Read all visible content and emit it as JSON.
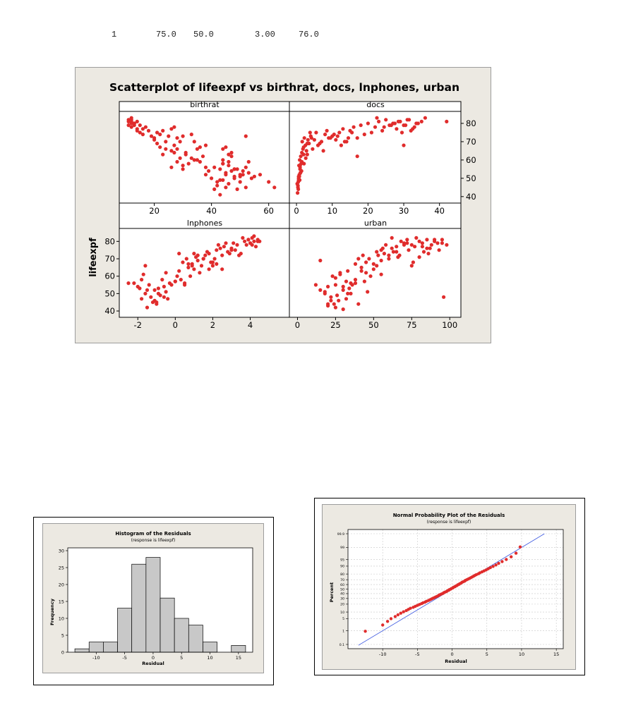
{
  "data_row": [
    "1",
    "75.0",
    "50.0",
    "3.00",
    "76.0"
  ],
  "colors": {
    "panel_bg": "#ece9e2",
    "plot_bg": "#ffffff",
    "point": "#e02c2c",
    "bar": "#c8c8c8",
    "fit_line": "#3a56e0"
  },
  "chart_data": [
    {
      "type": "scatter",
      "title": "Scatterplot of lifeexpf vs birthrat, docs, lnphones, urban",
      "ylabel": "lifeexpf",
      "ylim": [
        38,
        85
      ],
      "yticks": [
        40,
        50,
        60,
        70,
        80
      ],
      "ytick_labels": [
        "40",
        "50",
        "60",
        "70",
        "80"
      ],
      "panels": [
        {
          "label": "birthrat",
          "xlim": [
            9,
            66
          ],
          "xticks": [
            20,
            40,
            60
          ],
          "xtick_labels": [
            "20",
            "40",
            "60"
          ],
          "x": [
            11,
            12,
            13,
            11,
            14,
            12,
            13,
            15,
            12,
            16,
            14,
            13,
            11,
            12,
            15,
            17,
            13,
            18,
            16,
            14,
            12,
            21,
            19,
            20,
            23,
            22,
            24,
            20,
            26,
            21,
            27,
            22,
            25,
            28,
            24,
            29,
            30,
            26,
            23,
            27,
            31,
            28,
            33,
            29,
            32,
            34,
            30,
            31,
            36,
            35,
            37,
            38,
            34,
            39,
            40,
            36,
            38,
            41,
            33,
            30,
            28,
            27,
            26,
            43,
            44,
            45,
            42,
            44,
            45,
            46,
            43,
            47,
            48,
            46,
            44,
            45,
            47,
            49,
            50,
            48,
            52,
            51,
            53,
            54,
            50,
            52,
            43,
            44,
            46,
            48,
            42,
            45,
            47,
            49,
            51,
            53,
            41,
            44,
            46,
            48,
            50,
            52,
            55,
            62,
            60,
            57,
            35,
            38
          ],
          "y": [
            82,
            81,
            80,
            79,
            81,
            83,
            80,
            79,
            78,
            77,
            76,
            80,
            81,
            82,
            75,
            78,
            79,
            76,
            74,
            77,
            80,
            75,
            73,
            71,
            76,
            74,
            70,
            72,
            77,
            69,
            78,
            67,
            73,
            72,
            66,
            70,
            73,
            65,
            63,
            68,
            64,
            66,
            74,
            61,
            58,
            70,
            55,
            63,
            67,
            66,
            62,
            68,
            60,
            54,
            50,
            59,
            52,
            56,
            61,
            57,
            59,
            64,
            56,
            55,
            58,
            52,
            48,
            60,
            53,
            57,
            49,
            54,
            51,
            47,
            66,
            45,
            62,
            44,
            52,
            50,
            56,
            54,
            53,
            50,
            48,
            45,
            41,
            58,
            63,
            55,
            46,
            67,
            64,
            55,
            52,
            59,
            44,
            49,
            59,
            55,
            51,
            73,
            51,
            45,
            48,
            52,
            60,
            56
          ]
        },
        {
          "label": "docs",
          "xlim": [
            -1,
            45
          ],
          "xticks": [
            0,
            10,
            20,
            30,
            40
          ],
          "xtick_labels": [
            "0",
            "10",
            "20",
            "30",
            "40"
          ],
          "x": [
            0.3,
            0.4,
            0.5,
            0.6,
            0.8,
            1.0,
            0.7,
            0.9,
            1.1,
            1.3,
            0.2,
            0.5,
            0.6,
            0.4,
            0.9,
            1.2,
            1.5,
            1.8,
            2.0,
            2.5,
            3.0,
            1.0,
            1.6,
            2.2,
            2.8,
            3.5,
            4.0,
            4.5,
            5.0,
            5.5,
            6.0,
            7.0,
            8.0,
            9.0,
            10.0,
            11.0,
            12.0,
            13.0,
            14.0,
            15.0,
            16.0,
            17.0,
            18.0,
            19.0,
            20.0,
            21.0,
            22.0,
            23.0,
            24.0,
            25.0,
            26.0,
            27.0,
            28.0,
            29.0,
            30.0,
            31.0,
            32.0,
            33.0,
            34.0,
            35.0,
            36.0,
            27.5,
            28.5,
            29.5,
            30.5,
            31.5,
            32.5,
            33.5,
            22.5,
            24.5,
            26.5,
            8.5,
            9.5,
            10.5,
            11.5,
            12.5,
            13.5,
            6.5,
            7.5,
            3.2,
            3.8,
            2.6,
            2.1,
            1.4,
            1.1,
            0.8,
            0.6,
            17.0,
            2.0,
            1.5,
            1.0,
            30.0,
            42.0,
            3.0,
            4.2,
            14.5,
            15.5
          ],
          "y": [
            42,
            45,
            48,
            50,
            52,
            55,
            57,
            49,
            53,
            58,
            47,
            44,
            51,
            46,
            60,
            62,
            64,
            66,
            67,
            68,
            63,
            56,
            70,
            72,
            65,
            69,
            73,
            66,
            71,
            75,
            68,
            70,
            74,
            72,
            73,
            71,
            75,
            77,
            70,
            76,
            78,
            72,
            79,
            74,
            80,
            75,
            78,
            81,
            76,
            82,
            79,
            80,
            77,
            81,
            79,
            82,
            76,
            78,
            80,
            81,
            83,
            80,
            81,
            75,
            79,
            82,
            77,
            80,
            83,
            78,
            79,
            76,
            72,
            74,
            73,
            68,
            70,
            69,
            65,
            71,
            75,
            61,
            58,
            54,
            53,
            51,
            49,
            62,
            63,
            59,
            57,
            68,
            81,
            69,
            72,
            72,
            75
          ]
        },
        {
          "label": "lnphones",
          "xlim": [
            -2.8,
            5.9
          ],
          "xticks": [
            -2,
            0,
            2,
            4
          ],
          "xtick_labels": [
            "-2",
            "0",
            "2",
            "4"
          ],
          "x": [
            -2.2,
            -2.0,
            -1.8,
            -1.6,
            -1.9,
            -1.5,
            -1.7,
            -1.3,
            -1.1,
            -0.9,
            -1.4,
            -1.0,
            -0.7,
            -0.5,
            -0.3,
            -0.8,
            -0.6,
            -0.2,
            0.0,
            0.2,
            -0.4,
            0.1,
            0.3,
            0.5,
            0.7,
            0.9,
            0.4,
            0.6,
            0.8,
            1.0,
            1.2,
            1.4,
            1.1,
            1.3,
            1.5,
            1.7,
            1.9,
            1.6,
            1.8,
            2.0,
            2.2,
            2.4,
            2.1,
            2.3,
            2.5,
            2.7,
            2.9,
            2.6,
            2.8,
            3.0,
            3.2,
            3.4,
            3.1,
            3.3,
            3.5,
            3.7,
            3.9,
            3.6,
            3.8,
            4.0,
            4.2,
            4.4,
            4.1,
            4.3,
            4.5,
            3.9,
            4.0,
            4.2,
            4.4,
            4.1,
            -1.8,
            -1.6,
            -1.2,
            -0.9,
            -0.6,
            -2.5,
            1.2,
            1.5,
            0.5,
            2.0,
            2.5,
            3.0,
            -1.0,
            -0.5,
            0.0,
            1.0,
            0.7,
            1.8,
            2.2,
            -1.5,
            -1.1,
            0.2,
            0.9
          ],
          "y": [
            56,
            54,
            47,
            50,
            53,
            42,
            61,
            48,
            52,
            50,
            55,
            45,
            58,
            51,
            56,
            49,
            54,
            55,
            57,
            73,
            47,
            60,
            58,
            56,
            65,
            67,
            68,
            70,
            60,
            64,
            69,
            66,
            71,
            62,
            70,
            74,
            68,
            72,
            73,
            68,
            75,
            76,
            70,
            78,
            72,
            79,
            73,
            77,
            74,
            76,
            75,
            72,
            79,
            78,
            73,
            80,
            81,
            82,
            78,
            79,
            80,
            81,
            82,
            77,
            80,
            81,
            79,
            83,
            80,
            78,
            58,
            66,
            45,
            53,
            48,
            56,
            72,
            70,
            55,
            66,
            64,
            75,
            44,
            62,
            57,
            73,
            67,
            64,
            67,
            52,
            46,
            63,
            66
          ]
        },
        {
          "label": "urban",
          "xlim": [
            -3,
            105
          ],
          "xticks": [
            0,
            25,
            50,
            75,
            100
          ],
          "xtick_labels": [
            "0",
            "25",
            "50",
            "75",
            "100"
          ],
          "x": [
            12,
            15,
            18,
            20,
            22,
            25,
            23,
            27,
            30,
            32,
            28,
            35,
            33,
            38,
            40,
            36,
            42,
            45,
            43,
            48,
            50,
            47,
            52,
            55,
            53,
            58,
            60,
            57,
            62,
            65,
            63,
            68,
            70,
            67,
            72,
            75,
            73,
            78,
            80,
            77,
            82,
            85,
            83,
            88,
            90,
            87,
            92,
            95,
            93,
            98,
            15,
            18,
            20,
            25,
            30,
            35,
            40,
            45,
            50,
            55,
            60,
            65,
            70,
            75,
            80,
            85,
            90,
            95,
            28,
            32,
            38,
            42,
            46,
            52,
            56,
            62,
            66,
            72,
            76,
            82,
            86,
            25,
            30,
            22,
            26,
            34,
            44,
            96,
            20,
            24,
            33,
            38,
            55
          ],
          "y": [
            55,
            52,
            50,
            54,
            48,
            55,
            60,
            46,
            52,
            57,
            62,
            50,
            63,
            58,
            70,
            55,
            65,
            68,
            72,
            60,
            67,
            70,
            66,
            75,
            72,
            78,
            70,
            73,
            76,
            77,
            74,
            80,
            79,
            72,
            81,
            78,
            75,
            82,
            80,
            77,
            79,
            81,
            74,
            78,
            80,
            76,
            79,
            81,
            75,
            78,
            69,
            51,
            44,
            59,
            41,
            56,
            44,
            62,
            64,
            69,
            72,
            74,
            78,
            66,
            71,
            76,
            81,
            79,
            61,
            47,
            67,
            63,
            51,
            74,
            76,
            82,
            71,
            79,
            68,
            77,
            73,
            42,
            54,
            46,
            49,
            53,
            57,
            48,
            43,
            44,
            50,
            56,
            61
          ]
        }
      ]
    },
    {
      "type": "bar",
      "title": "Histogram of the Residuals",
      "subtitle": "(response is lifeexpf)",
      "xlabel": "Residual",
      "ylabel": "Frequency",
      "ylim": [
        0,
        30
      ],
      "yticks": [
        0,
        5,
        10,
        15,
        20,
        25,
        30
      ],
      "ytick_labels": [
        "0",
        "5",
        "10",
        "15",
        "20",
        "25",
        "30"
      ],
      "xlim": [
        -15,
        17.5
      ],
      "xticks": [
        -10,
        -5,
        0,
        5,
        10,
        15
      ],
      "xtick_labels": [
        "-10",
        "-5",
        "0",
        "5",
        "10",
        "15"
      ],
      "bin_width": 2.5,
      "bin_starts": [
        -13.75,
        -11.25,
        -8.75,
        -6.25,
        -3.75,
        -1.25,
        1.25,
        3.75,
        6.25,
        8.75,
        11.25,
        13.75
      ],
      "values": [
        1,
        3,
        3,
        13,
        26,
        28,
        16,
        10,
        8,
        3,
        0,
        2
      ]
    },
    {
      "type": "scatter",
      "title": "Normal Probability Plot of the Residuals",
      "subtitle": "(response is lifeexpf)",
      "xlabel": "Residual",
      "ylabel": "Percent",
      "xlim": [
        -15,
        16
      ],
      "xticks": [
        -10,
        -5,
        0,
        5,
        10,
        15
      ],
      "xtick_labels": [
        "-10",
        "-5",
        "0",
        "5",
        "10",
        "15"
      ],
      "yticks": [
        0.1,
        1,
        5,
        10,
        20,
        30,
        40,
        50,
        60,
        70,
        80,
        90,
        95,
        99,
        99.9
      ],
      "ytick_labels": [
        "0.1",
        "1",
        "5",
        "10",
        "20",
        "30",
        "40",
        "50",
        "60",
        "70",
        "80",
        "90",
        "95",
        "99",
        "99.9"
      ],
      "fit_line": {
        "mean": 0,
        "sd": 4.3
      },
      "residuals": [
        -12.5,
        -10.0,
        -9.3,
        -8.8,
        -8.2,
        -7.8,
        -7.4,
        -7.0,
        -6.6,
        -6.3,
        -6.0,
        -5.6,
        -5.3,
        -5.0,
        -4.7,
        -4.4,
        -4.2,
        -3.9,
        -3.7,
        -3.4,
        -3.2,
        -3.0,
        -2.8,
        -2.6,
        -2.4,
        -2.2,
        -2.0,
        -1.9,
        -1.7,
        -1.5,
        -1.3,
        -1.2,
        -1.0,
        -0.8,
        -0.7,
        -0.5,
        -0.4,
        -0.2,
        -0.1,
        0.1,
        0.2,
        0.4,
        0.5,
        0.7,
        0.8,
        1.0,
        1.1,
        1.3,
        1.4,
        1.6,
        1.8,
        1.9,
        2.1,
        2.3,
        2.5,
        2.7,
        2.9,
        3.1,
        3.3,
        3.5,
        3.8,
        4.0,
        4.3,
        4.6,
        4.9,
        5.2,
        5.5,
        5.9,
        6.3,
        6.7,
        7.2,
        7.8,
        8.5,
        9.2,
        9.8
      ]
    }
  ]
}
